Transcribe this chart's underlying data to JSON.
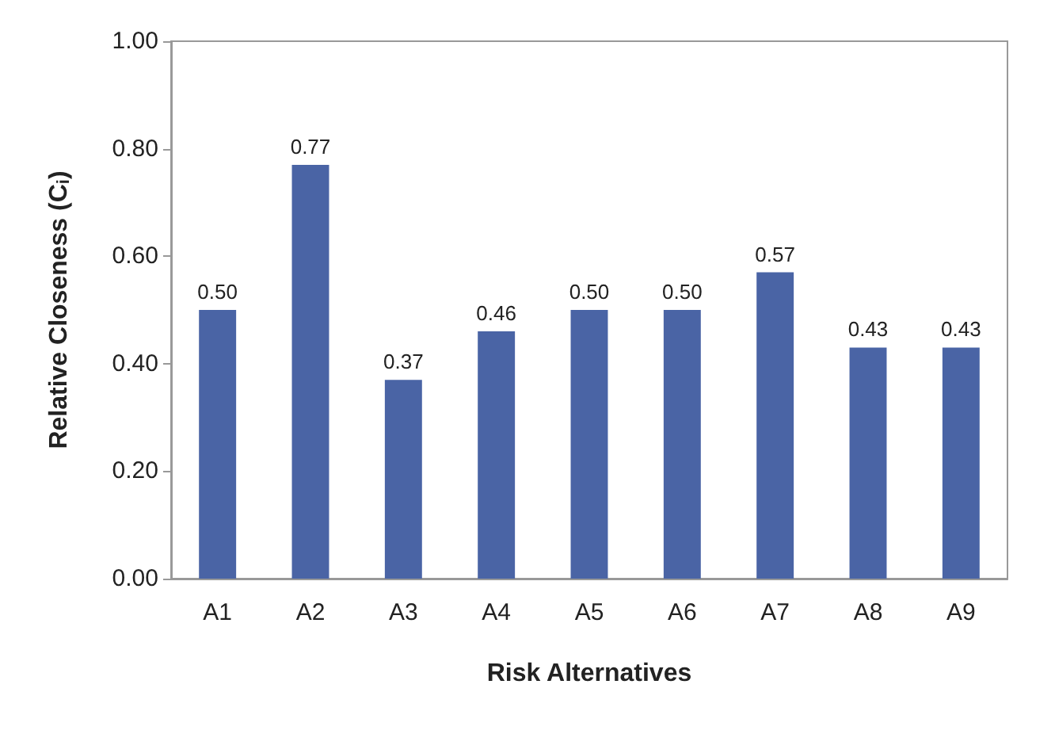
{
  "chart_data": {
    "type": "bar",
    "xlabel": "Risk Alternatives",
    "ylabel": "Relative Closeness (C$_{i}$)",
    "categories": [
      "A1",
      "A2",
      "A3",
      "A4",
      "A5",
      "A6",
      "A7",
      "A8",
      "A9"
    ],
    "values": [
      0.5,
      0.77,
      0.37,
      0.46,
      0.5,
      0.5,
      0.57,
      0.43,
      0.43
    ],
    "value_labels": [
      "0.50",
      "0.77",
      "0.37",
      "0.46",
      "0.50",
      "0.50",
      "0.57",
      "0.43",
      "0.43"
    ],
    "color": "#4a64a5",
    "ylim": [
      0,
      1
    ],
    "yticks": [
      {
        "value": 0,
        "label": "0.00"
      },
      {
        "value": 0.2,
        "label": "0.20"
      },
      {
        "value": 0.4,
        "label": "0.40"
      },
      {
        "value": 0.6,
        "label": "0.60"
      },
      {
        "value": 0.8,
        "label": "0.80"
      },
      {
        "value": 1,
        "label": "1.00"
      }
    ],
    "grid": false
  }
}
